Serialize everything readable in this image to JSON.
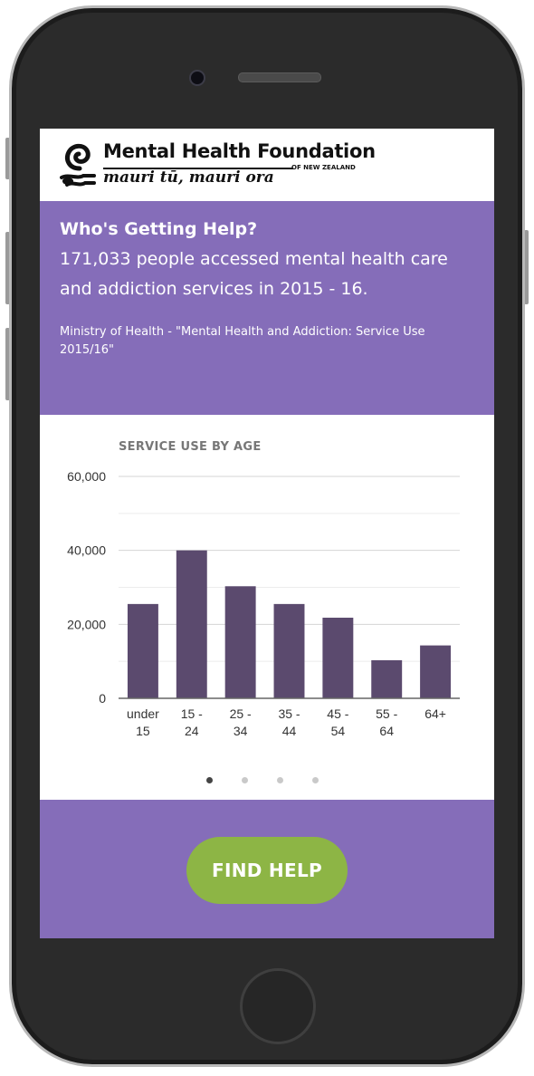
{
  "logo": {
    "name": "Mental Health Foundation",
    "tagline": "mauri tū, mauri ora",
    "subtitle": "OF NEW ZEALAND"
  },
  "banner": {
    "heading": "Who's Getting Help?",
    "stat": "171,033 people accessed mental health care and addiction services in 2015 - 16.",
    "source": "Ministry of Health - \"Mental Health and Addiction: Service Use 2015/16\""
  },
  "chart_data": {
    "type": "bar",
    "title": "SERVICE USE BY AGE",
    "categories": [
      [
        "under",
        "15"
      ],
      [
        "15 -",
        "24"
      ],
      [
        "25 -",
        "34"
      ],
      [
        "35 -",
        "44"
      ],
      [
        "45 -",
        "54"
      ],
      [
        "55 -",
        "64"
      ],
      [
        "64+"
      ]
    ],
    "values": [
      25500,
      40000,
      30300,
      25500,
      21800,
      10300,
      14300
    ],
    "ylim": [
      0,
      60000
    ],
    "yticks": [
      0,
      20000,
      40000,
      60000
    ],
    "ytick_labels": [
      "0",
      "20,000",
      "40,000",
      "60,000"
    ],
    "grid": true,
    "bar_color": "#5b4a6e",
    "xlabel": "",
    "ylabel": ""
  },
  "carousel": {
    "count": 4,
    "active": 0
  },
  "cta": {
    "label": "FIND HELP"
  },
  "colors": {
    "purple": "#856db9",
    "green": "#8db545"
  }
}
